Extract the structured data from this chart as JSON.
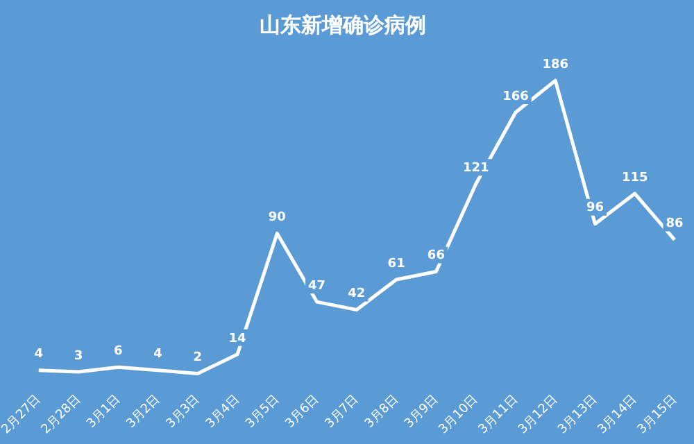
{
  "chart_data": {
    "type": "line",
    "title": "山东新增确诊病例",
    "categories": [
      "2月27日",
      "2月28日",
      "3月1日",
      "3月2日",
      "3月3日",
      "3月4日",
      "3月5日",
      "3月6日",
      "3月7日",
      "3月8日",
      "3月9日",
      "3月10日",
      "3月11日",
      "3月12日",
      "3月13日",
      "3月14日",
      "3月15日"
    ],
    "series": [
      {
        "color": "#ffffff",
        "values": [
          4,
          3,
          6,
          4,
          2,
          14,
          90,
          47,
          42,
          61,
          66,
          121,
          166,
          186,
          96,
          115,
          86
        ]
      }
    ],
    "data_labels": true,
    "marker": "none",
    "grid": false,
    "legend": false
  }
}
